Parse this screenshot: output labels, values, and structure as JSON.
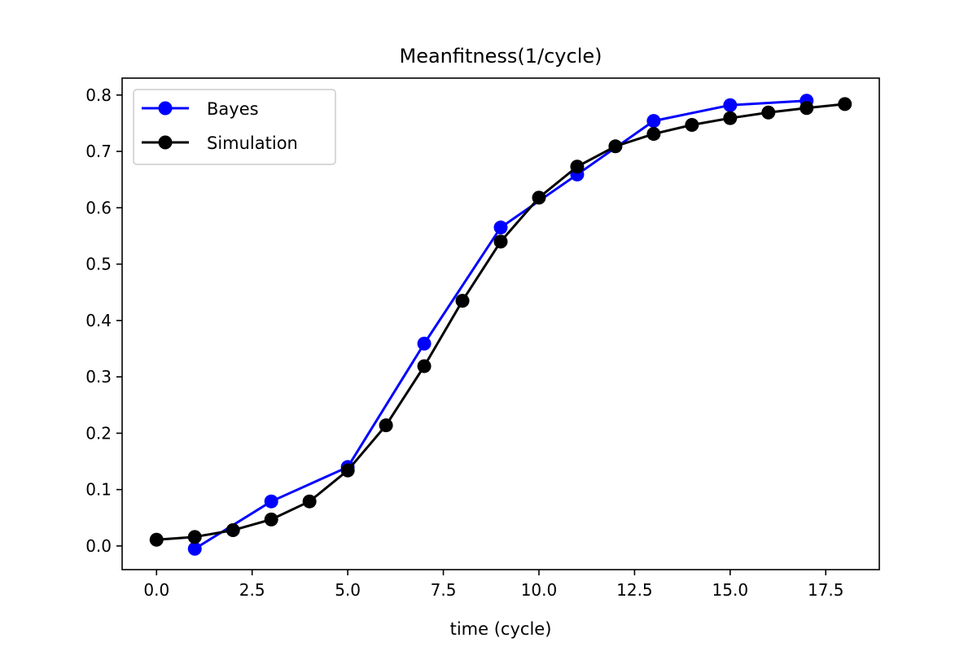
{
  "chart_data": {
    "type": "line",
    "title": "Meanfitness(1/cycle)",
    "xlabel": "time (cycle)",
    "ylabel": "",
    "xlim": [
      -0.9,
      18.9
    ],
    "ylim": [
      -0.042,
      0.83
    ],
    "xticks": [
      0.0,
      2.5,
      5.0,
      7.5,
      10.0,
      12.5,
      15.0,
      17.5
    ],
    "xtick_labels": [
      "0.0",
      "2.5",
      "5.0",
      "7.5",
      "10.0",
      "12.5",
      "15.0",
      "17.5"
    ],
    "yticks": [
      0.0,
      0.1,
      0.2,
      0.3,
      0.4,
      0.5,
      0.6,
      0.7,
      0.8
    ],
    "ytick_labels": [
      "0.0",
      "0.1",
      "0.2",
      "0.3",
      "0.4",
      "0.5",
      "0.6",
      "0.7",
      "0.8"
    ],
    "grid": false,
    "legend": "top-left",
    "series": [
      {
        "name": "Bayes",
        "color": "#0000ff",
        "x": [
          1,
          3,
          5,
          7,
          9,
          11,
          13,
          15,
          17
        ],
        "y": [
          -0.005,
          0.079,
          0.14,
          0.359,
          0.565,
          0.659,
          0.754,
          0.782,
          0.79
        ]
      },
      {
        "name": "Simulation",
        "color": "#000000",
        "x": [
          0,
          1,
          2,
          3,
          4,
          5,
          6,
          7,
          8,
          9,
          10,
          11,
          12,
          13,
          14,
          15,
          16,
          17,
          18
        ],
        "y": [
          0.011,
          0.016,
          0.028,
          0.047,
          0.079,
          0.134,
          0.214,
          0.319,
          0.435,
          0.54,
          0.618,
          0.673,
          0.709,
          0.731,
          0.747,
          0.759,
          0.769,
          0.777,
          0.784
        ]
      }
    ]
  }
}
